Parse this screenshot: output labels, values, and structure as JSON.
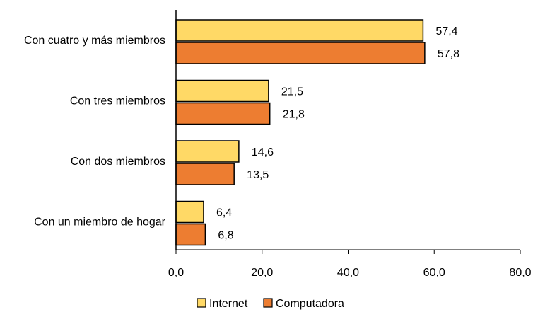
{
  "chart_data": {
    "type": "bar",
    "orientation": "horizontal",
    "categories": [
      "Con cuatro y más miembros",
      "Con tres miembros",
      "Con dos miembros",
      "Con un miembro de hogar"
    ],
    "series": [
      {
        "name": "Internet",
        "values": [
          57.4,
          21.5,
          14.6,
          6.4
        ],
        "color": "#FFD966"
      },
      {
        "name": "Computadora",
        "values": [
          57.8,
          21.8,
          13.5,
          6.8
        ],
        "color": "#ED7D31"
      }
    ],
    "value_labels": [
      [
        "57,4",
        "21,5",
        "14,6",
        "6,4"
      ],
      [
        "57,8",
        "21,8",
        "13,5",
        "6,8"
      ]
    ],
    "xlim": [
      0,
      80
    ],
    "xticks": [
      0,
      20,
      40,
      60,
      80
    ],
    "xtick_labels": [
      "0,0",
      "20,0",
      "40,0",
      "60,0",
      "80,0"
    ],
    "title": "",
    "xlabel": "",
    "ylabel": "",
    "grid": false,
    "legend_position": "bottom-center",
    "bar_edge_color": "#000000"
  }
}
